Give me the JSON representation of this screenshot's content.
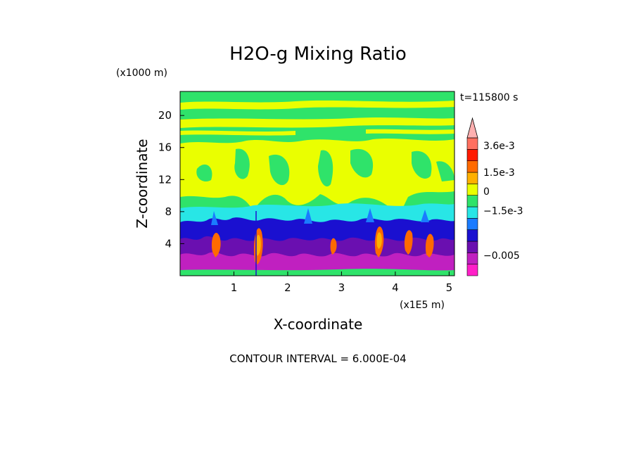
{
  "chart_data": {
    "type": "heatmap",
    "title": "H2O-g Mixing Ratio",
    "xlabel": "X-coordinate",
    "ylabel": "Z-coordinate",
    "x_unit": "(x1E5 m)",
    "y_unit": "(x1000 m)",
    "time_label": "t=115800 s",
    "contour_interval": "CONTOUR INTERVAL = 6.000E-04",
    "xlim": [
      0,
      5.1
    ],
    "ylim": [
      0,
      23
    ],
    "x_ticks": [
      1,
      2,
      3,
      4,
      5
    ],
    "y_ticks": [
      4,
      8,
      12,
      16,
      20
    ],
    "x_tick_labels": [
      "1",
      "2",
      "3",
      "4",
      "5"
    ],
    "y_tick_labels": [
      "4",
      "8",
      "12",
      "16",
      "20"
    ],
    "colorbar": {
      "colors": [
        "#ff1fc8",
        "#c020c0",
        "#6a0fb0",
        "#1a10d0",
        "#1a7bff",
        "#28e6e6",
        "#2fe36a",
        "#eaff00",
        "#ffb000",
        "#ff6a00",
        "#ff1a00",
        "#ff7060",
        "#ffb0b0"
      ],
      "labels": [
        "3.6e-3",
        "1.5e-3",
        "0",
        "−1.5e-3",
        "−0.005"
      ],
      "label_levels": [
        0.0036,
        0.0015,
        0,
        -0.0015,
        -0.005
      ],
      "vmin": -0.0066,
      "vmax": 0.0042
    }
  }
}
